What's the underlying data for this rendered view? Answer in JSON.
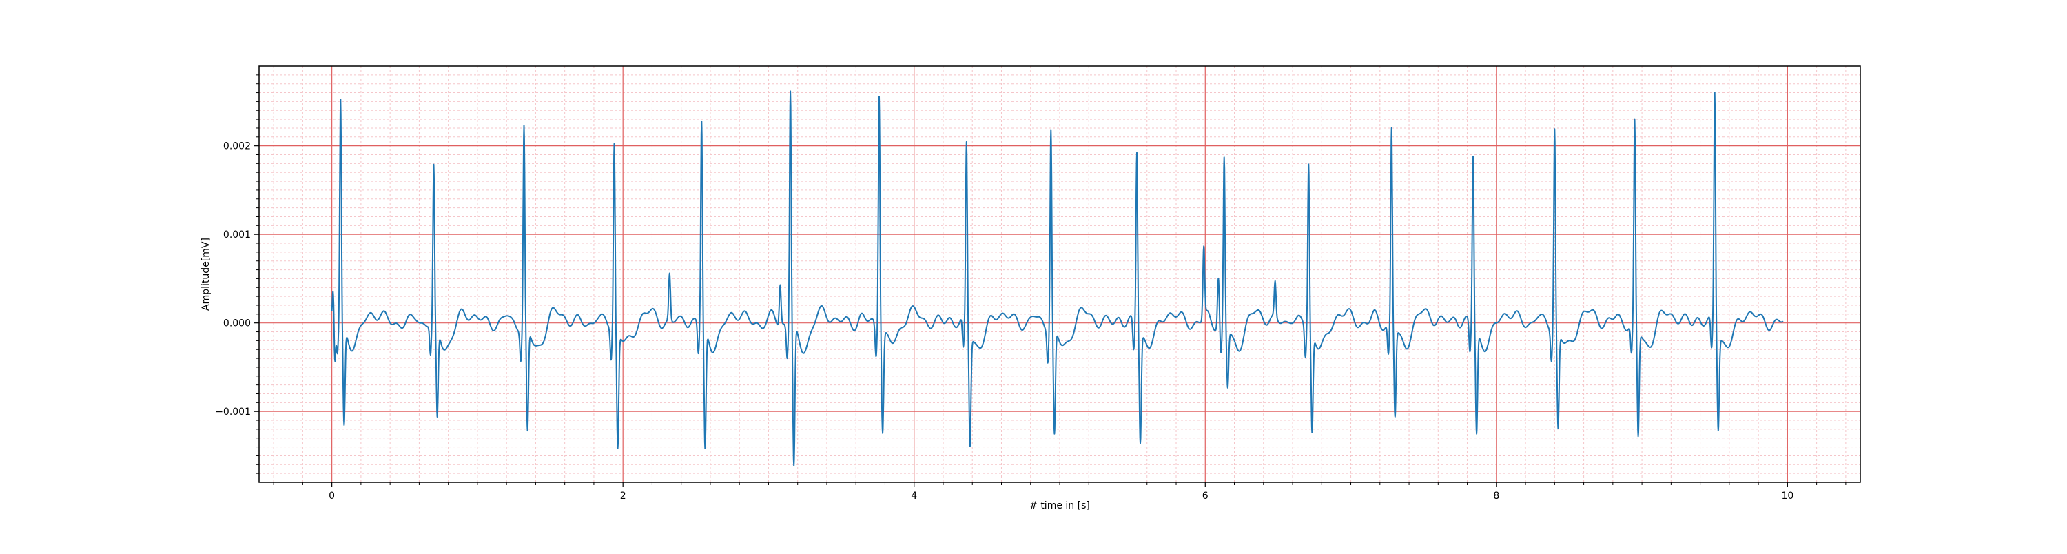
{
  "chart_data": {
    "type": "line",
    "title": "",
    "xlabel": "# time in [s]",
    "ylabel": "Amplitude[mV]",
    "xlim": [
      -0.5,
      10.5
    ],
    "ylim": [
      -0.0018,
      0.0029
    ],
    "x_ticks": [
      0,
      2,
      4,
      6,
      8,
      10
    ],
    "x_tick_labels": [
      "0",
      "2",
      "4",
      "6",
      "8",
      "10"
    ],
    "y_ticks": [
      -0.001,
      0.0,
      0.001,
      0.002
    ],
    "y_tick_labels": [
      "−0.001",
      "0.000",
      "0.001",
      "0.002"
    ],
    "grid": "major red, minor light pink",
    "legend": "none",
    "colors": {
      "line": "#1f77b4",
      "major_grid": "#e06060",
      "minor_grid": "#f5c5c9",
      "axes": "#000000"
    },
    "r_peaks": [
      {
        "t": 0.06,
        "r": 0.00255,
        "s": -0.0011
      },
      {
        "t": 0.7,
        "r": 0.00175,
        "s": -0.00103
      },
      {
        "t": 1.32,
        "r": 0.00225,
        "s": -0.00118
      },
      {
        "t": 1.94,
        "r": 0.00208,
        "s": -0.00132
      },
      {
        "t": 2.54,
        "r": 0.0023,
        "s": -0.00136
      },
      {
        "t": 3.15,
        "r": 0.00268,
        "s": -0.00158
      },
      {
        "t": 3.76,
        "r": 0.00268,
        "s": -0.00112
      },
      {
        "t": 4.36,
        "r": 0.00204,
        "s": -0.00126
      },
      {
        "t": 4.94,
        "r": 0.00225,
        "s": -0.0012
      },
      {
        "t": 5.53,
        "r": 0.00198,
        "s": -0.00124
      },
      {
        "t": 6.13,
        "r": 0.00188,
        "s": -0.00065
      },
      {
        "t": 6.71,
        "r": 0.00185,
        "s": -0.00113
      },
      {
        "t": 7.28,
        "r": 0.00222,
        "s": -0.00098
      },
      {
        "t": 7.84,
        "r": 0.00193,
        "s": -0.00116
      },
      {
        "t": 8.4,
        "r": 0.00225,
        "s": -0.0011
      },
      {
        "t": 8.95,
        "r": 0.00227,
        "s": -0.00122
      },
      {
        "t": 9.5,
        "r": 0.00264,
        "s": -0.00106
      }
    ],
    "extra_deflections": [
      {
        "t": 0.01,
        "v": 0.0004
      },
      {
        "t": 0.02,
        "v": -0.00055
      },
      {
        "t": 2.32,
        "v": 0.00053
      },
      {
        "t": 3.08,
        "v": 0.00046
      },
      {
        "t": 5.99,
        "v": 0.0008
      },
      {
        "t": 6.09,
        "v": 0.00055
      },
      {
        "t": 6.48,
        "v": 0.0004
      }
    ],
    "x_end": 9.97
  }
}
